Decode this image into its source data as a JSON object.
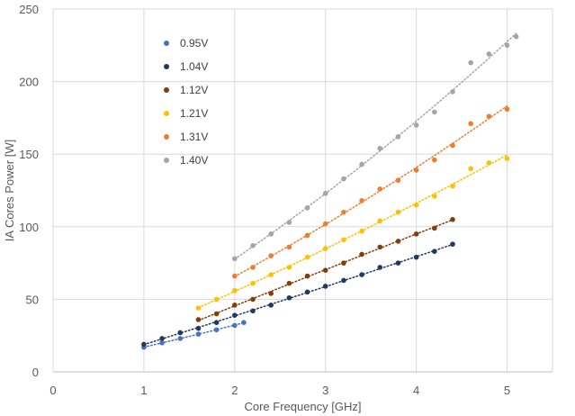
{
  "chart_data": {
    "type": "scatter",
    "title": "",
    "xlabel": "Core Frequency [GHz]",
    "ylabel": "IA Cores Power [W]",
    "xlim": [
      0,
      5.5
    ],
    "ylim": [
      0,
      250
    ],
    "xticks": [
      "0",
      "1",
      "2",
      "3",
      "4",
      "5"
    ],
    "yticks": [
      "0",
      "50",
      "100",
      "150",
      "200",
      "250"
    ],
    "grid": true,
    "trendlines": "dotted",
    "legend_position": "top-left",
    "series": [
      {
        "name": "0.95V",
        "color": "#4472c4",
        "x": [
          1.0,
          1.2,
          1.4,
          1.6,
          1.8,
          2.0,
          2.1
        ],
        "y": [
          17,
          20,
          23,
          26,
          29,
          32,
          34
        ]
      },
      {
        "name": "1.04V",
        "color": "#203864",
        "x": [
          1.0,
          1.2,
          1.4,
          1.6,
          1.8,
          2.0,
          2.2,
          2.4,
          2.6,
          2.8,
          3.0,
          3.2,
          3.4,
          3.6,
          3.8,
          4.0,
          4.2,
          4.4
        ],
        "y": [
          19,
          23,
          27,
          30,
          34,
          39,
          42,
          46,
          51,
          55,
          59,
          63,
          67,
          72,
          75,
          79,
          83,
          88
        ]
      },
      {
        "name": "1.12V",
        "color": "#843c0c",
        "x": [
          1.6,
          1.8,
          2.0,
          2.2,
          2.4,
          2.6,
          2.8,
          3.0,
          3.2,
          3.4,
          3.6,
          3.8,
          4.0,
          4.2,
          4.4
        ],
        "y": [
          36,
          40,
          46,
          50,
          54,
          61,
          66,
          70,
          75,
          81,
          86,
          90,
          95,
          99,
          105
        ]
      },
      {
        "name": "1.21V",
        "color": "#ffc000",
        "x": [
          1.6,
          1.8,
          2.0,
          2.2,
          2.4,
          2.6,
          2.8,
          3.0,
          3.2,
          3.4,
          3.6,
          3.8,
          4.0,
          4.2,
          4.4,
          4.6,
          4.8,
          5.0
        ],
        "y": [
          44,
          50,
          56,
          61,
          67,
          72,
          79,
          85,
          91,
          97,
          104,
          110,
          115,
          121,
          128,
          140,
          144,
          147
        ]
      },
      {
        "name": "1.31V",
        "color": "#ed7d31",
        "x": [
          2.0,
          2.2,
          2.4,
          2.6,
          2.8,
          3.0,
          3.2,
          3.4,
          3.6,
          3.8,
          4.0,
          4.2,
          4.4,
          4.6,
          4.8,
          5.0
        ],
        "y": [
          66,
          72,
          80,
          86,
          94,
          102,
          110,
          118,
          126,
          132,
          139,
          146,
          156,
          171,
          176,
          181
        ]
      },
      {
        "name": "1.40V",
        "color": "#a5a5a5",
        "x": [
          2.0,
          2.2,
          2.4,
          2.6,
          2.8,
          3.0,
          3.2,
          3.4,
          3.6,
          3.8,
          4.0,
          4.2,
          4.4,
          4.6,
          4.8,
          5.0,
          5.1
        ],
        "y": [
          78,
          87,
          95,
          103,
          113,
          123,
          133,
          143,
          154,
          162,
          170,
          179,
          193,
          213,
          219,
          225,
          231
        ]
      }
    ]
  }
}
